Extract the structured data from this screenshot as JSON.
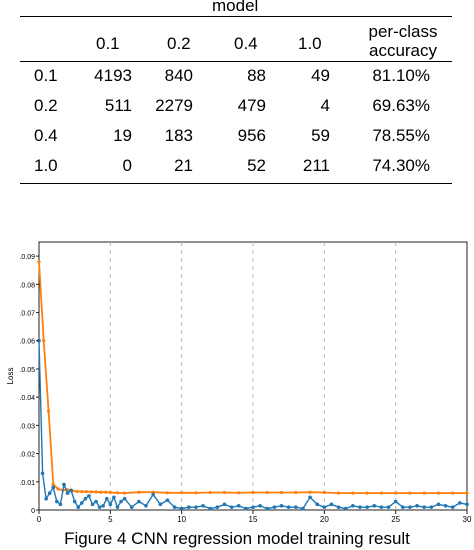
{
  "table": {
    "group_header": "model",
    "columns": [
      "0.1",
      "0.2",
      "0.4",
      "1.0",
      "per-class\naccuracy"
    ],
    "rows": [
      {
        "label": "0.1",
        "cells": [
          "4193",
          "840",
          "88",
          "49",
          "81.10%"
        ]
      },
      {
        "label": "0.2",
        "cells": [
          "511",
          "2279",
          "479",
          "4",
          "69.63%"
        ]
      },
      {
        "label": "0.4",
        "cells": [
          "19",
          "183",
          "956",
          "59",
          "78.55%"
        ]
      },
      {
        "label": "1.0",
        "cells": [
          "0",
          "21",
          "52",
          "211",
          "74.30%"
        ]
      }
    ]
  },
  "figure": {
    "caption": "Figure 4 CNN regression model training result"
  },
  "chart_data": {
    "type": "line",
    "title": "",
    "xlabel": "",
    "ylabel": "Loss",
    "xlim": [
      0,
      30
    ],
    "ylim": [
      0,
      0.095
    ],
    "x_ticks": [
      "0",
      "5",
      "10",
      "15",
      "20",
      "25",
      "30"
    ],
    "y_ticks": [
      ".0.09",
      ".0.08",
      ".0.07",
      ".0.06",
      ".0.05",
      ".0.04",
      ".0.03",
      ".0.02",
      ".0.01",
      "0"
    ],
    "grid": "vertical dashed",
    "colors": {
      "series_blue": "#1f77b4",
      "series_orange": "#ff7f0e"
    },
    "series": [
      {
        "color": "#ff7f0e",
        "x": [
          0,
          0.33,
          0.67,
          1,
          1.33,
          1.67,
          2,
          2.33,
          2.67,
          3,
          3.33,
          3.67,
          4,
          4.33,
          4.67,
          5,
          5.5,
          6,
          7,
          8,
          9,
          10,
          11,
          12,
          13,
          14,
          15,
          16,
          17,
          18,
          19,
          20,
          21,
          22,
          23,
          24,
          25,
          26,
          27,
          28,
          29,
          30
        ],
        "y": [
          0.088,
          0.06,
          0.035,
          0.009,
          0.0075,
          0.007,
          0.0072,
          0.0068,
          0.0066,
          0.0065,
          0.0065,
          0.0064,
          0.0064,
          0.0063,
          0.0063,
          0.0062,
          0.0061,
          0.006,
          0.0063,
          0.0063,
          0.0061,
          0.0061,
          0.0061,
          0.0062,
          0.0062,
          0.0061,
          0.0062,
          0.0062,
          0.0062,
          0.0062,
          0.0063,
          0.0062,
          0.006,
          0.006,
          0.006,
          0.006,
          0.006,
          0.006,
          0.006,
          0.006,
          0.006,
          0.006
        ]
      },
      {
        "color": "#1f77b4",
        "x": [
          0,
          0.25,
          0.5,
          0.75,
          1,
          1.25,
          1.5,
          1.75,
          2,
          2.25,
          2.5,
          2.75,
          3,
          3.25,
          3.5,
          3.75,
          4,
          4.25,
          4.5,
          4.75,
          5,
          5.25,
          5.5,
          5.75,
          6,
          6.5,
          7,
          7.5,
          8,
          8.5,
          9,
          9.5,
          10,
          10.5,
          11,
          11.5,
          12,
          12.5,
          13,
          13.5,
          14,
          14.5,
          15,
          15.5,
          16,
          16.5,
          17,
          17.5,
          18,
          18.5,
          19,
          19.5,
          20,
          20.5,
          21,
          21.5,
          22,
          22.5,
          23,
          23.5,
          24,
          24.5,
          25,
          25.5,
          26,
          26.5,
          27,
          27.5,
          28,
          28.5,
          29,
          29.5,
          30
        ],
        "y": [
          0.06,
          0.013,
          0.004,
          0.006,
          0.008,
          0.003,
          0.002,
          0.009,
          0.006,
          0.007,
          0.003,
          0.001,
          0.0025,
          0.004,
          0.005,
          0.002,
          0.003,
          0.001,
          0.0015,
          0.004,
          0.002,
          0.0045,
          0.001,
          0.003,
          0.004,
          0.001,
          0.003,
          0.0015,
          0.0055,
          0.002,
          0.0035,
          0.001,
          0.0005,
          0.001,
          0.001,
          0.0015,
          0.0005,
          0.001,
          0.002,
          0.001,
          0.0015,
          0.0005,
          0.001,
          0.0015,
          0.0005,
          0.001,
          0.0015,
          0.001,
          0.001,
          0.0005,
          0.0045,
          0.002,
          0.001,
          0.002,
          0.001,
          0.0005,
          0.0015,
          0.001,
          0.001,
          0.0015,
          0.001,
          0.001,
          0.003,
          0.001,
          0.001,
          0.0015,
          0.001,
          0.001,
          0.002,
          0.0015,
          0.001,
          0.0025,
          0.002
        ]
      }
    ]
  }
}
